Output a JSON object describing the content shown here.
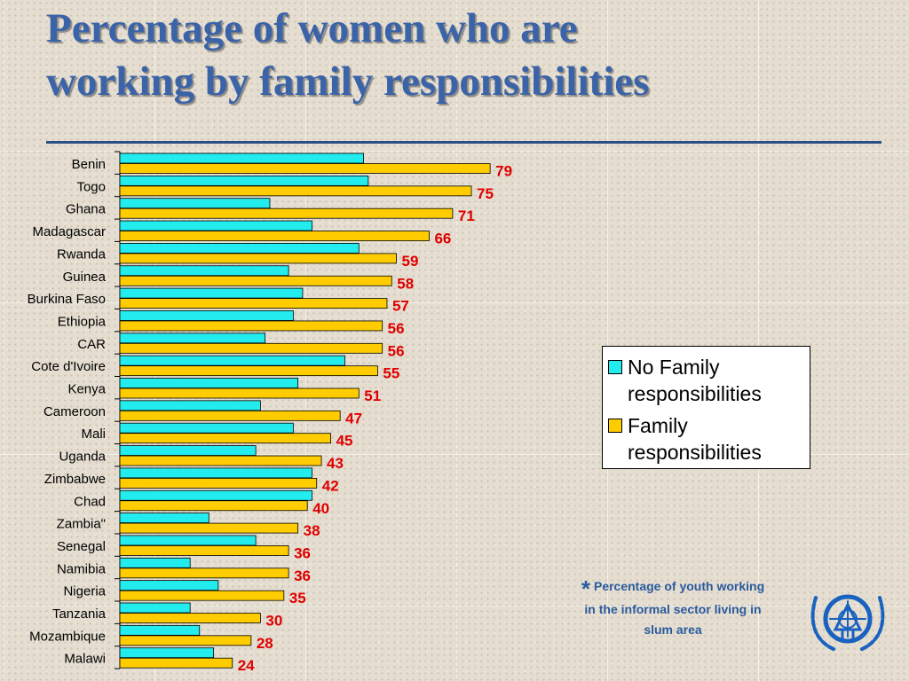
{
  "title": {
    "line1": "Percentage of women who are",
    "line2": "working by family responsibilities"
  },
  "chart_data": {
    "type": "bar",
    "orientation": "horizontal",
    "categories": [
      "Benin",
      "Togo",
      "Ghana",
      "Madagascar",
      "Rwanda",
      "Guinea",
      "Burkina Faso",
      "Ethiopia",
      "CAR",
      "Cote d'Ivoire",
      "Kenya",
      "Cameroon",
      "Mali",
      "Uganda",
      "Zimbabwe",
      "Chad",
      "Zambia\"",
      "Senegal",
      "Namibia",
      "Nigeria",
      "Tanzania",
      "Mozambique",
      "Malawi"
    ],
    "series": [
      {
        "name": "No Family responsibilities",
        "color": "#22ecee",
        "values": [
          52,
          53,
          32,
          41,
          51,
          36,
          39,
          37,
          31,
          48,
          38,
          30,
          37,
          29,
          41,
          41,
          19,
          29,
          15,
          21,
          15,
          17,
          20
        ]
      },
      {
        "name": "Family responsibilities",
        "color": "#ffcc00",
        "values": [
          79,
          75,
          71,
          66,
          59,
          58,
          57,
          56,
          56,
          55,
          51,
          47,
          45,
          43,
          42,
          40,
          38,
          36,
          36,
          35,
          30,
          28,
          24
        ],
        "data_labels": [
          "79",
          "75",
          "71",
          "66",
          "59",
          "58",
          "57",
          "56",
          "56",
          "55",
          "51",
          "47",
          "45",
          "43",
          "42",
          "40",
          "38",
          "36",
          "36",
          "35",
          "30",
          "28",
          "24"
        ]
      }
    ],
    "xlim": [
      0,
      100
    ],
    "grid": false,
    "legend_position": "right",
    "label_color": "#e00000"
  },
  "legend": {
    "items": [
      {
        "label": "No Family responsibilities",
        "color": "#22ecee"
      },
      {
        "label": "Family responsibilities",
        "color": "#ffcc00"
      }
    ]
  },
  "footnote": {
    "star": "*",
    "text": "Percentage of youth working in the informal sector living in slum area"
  },
  "emblem": {
    "icon": "un-habitat-emblem-icon",
    "color": "#1a62c0"
  }
}
